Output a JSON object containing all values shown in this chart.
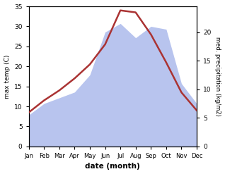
{
  "months": [
    "Jan",
    "Feb",
    "Mar",
    "Apr",
    "May",
    "Jun",
    "Jul",
    "Aug",
    "Sep",
    "Oct",
    "Nov",
    "Dec"
  ],
  "temp": [
    8.5,
    11.5,
    14.0,
    17.0,
    20.5,
    25.5,
    34.0,
    33.5,
    28.0,
    21.0,
    13.5,
    9.0
  ],
  "precip": [
    5.5,
    7.5,
    8.5,
    9.5,
    12.5,
    20.0,
    21.5,
    19.0,
    21.0,
    20.5,
    11.0,
    7.5
  ],
  "temp_color": "#aa3333",
  "precip_color": "#b8c4ee",
  "temp_ylim": [
    0,
    35
  ],
  "precip_ylim": [
    0,
    24.5
  ],
  "temp_ylabel": "max temp (C)",
  "precip_ylabel": "med. precipitation (kg/m2)",
  "xlabel": "date (month)",
  "temp_yticks": [
    0,
    5,
    10,
    15,
    20,
    25,
    30,
    35
  ],
  "precip_yticks": [
    0,
    5,
    10,
    15,
    20
  ],
  "bg_color": "#ffffff"
}
